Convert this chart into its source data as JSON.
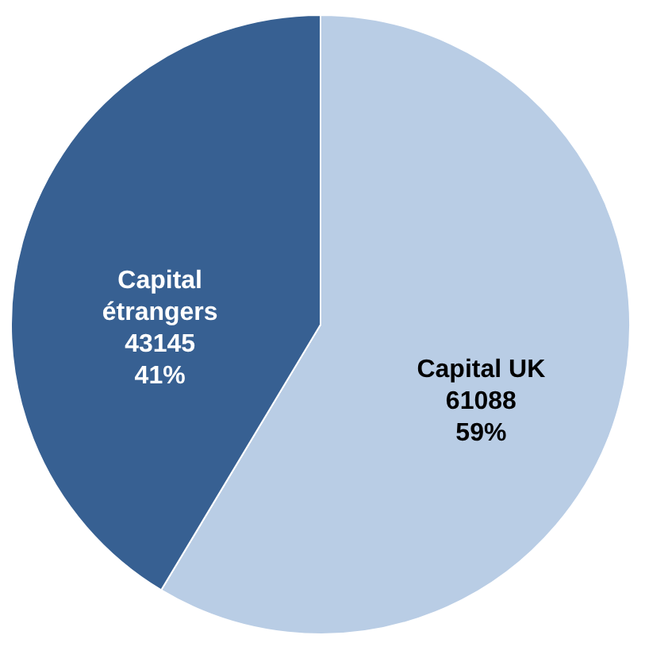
{
  "chart_data": {
    "type": "pie",
    "categories": [
      "Capital UK",
      "Capital étrangers"
    ],
    "values": [
      61088,
      43145
    ],
    "colors": [
      "#b9cde5",
      "#376092"
    ],
    "value_labels": [
      "61088\n59%",
      "43145\n41%"
    ]
  }
}
